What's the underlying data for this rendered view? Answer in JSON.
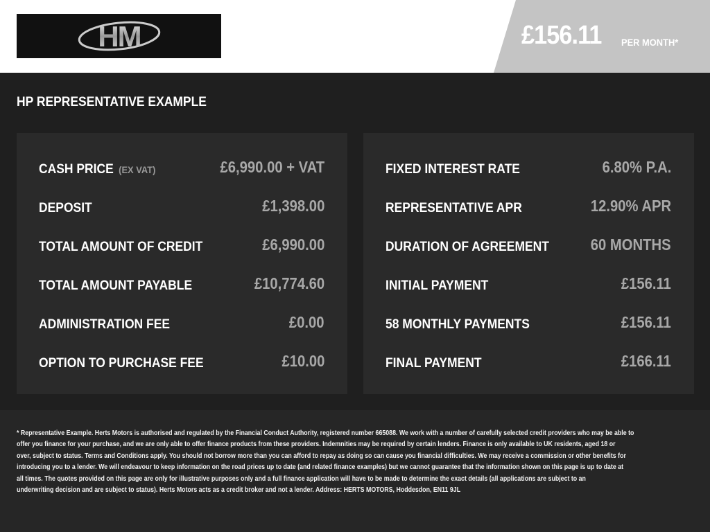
{
  "header": {
    "logo_text": "HM",
    "price": "£156.11",
    "per_month": "PER MONTH*"
  },
  "title": "HP REPRESENTATIVE EXAMPLE",
  "left": [
    {
      "label": "CASH PRICE",
      "sub": "(EX VAT)",
      "value": "£6,990.00 + VAT"
    },
    {
      "label": "DEPOSIT",
      "value": "£1,398.00"
    },
    {
      "label": "TOTAL AMOUNT OF CREDIT",
      "value": "£6,990.00"
    },
    {
      "label": "TOTAL AMOUNT PAYABLE",
      "value": "£10,774.60"
    },
    {
      "label": "ADMINISTRATION FEE",
      "value": "£0.00"
    },
    {
      "label": "OPTION TO PURCHASE FEE",
      "value": "£10.00"
    }
  ],
  "right": [
    {
      "label": "FIXED INTEREST RATE",
      "value": "6.80% P.A."
    },
    {
      "label": "REPRESENTATIVE APR",
      "value": "12.90% APR"
    },
    {
      "label": "DURATION OF AGREEMENT",
      "value": "60 MONTHS"
    },
    {
      "label": "INITIAL PAYMENT",
      "value": "£156.11"
    },
    {
      "label": "58 MONTHLY PAYMENTS",
      "value": "£156.11"
    },
    {
      "label": "FINAL PAYMENT",
      "value": "£166.11"
    }
  ],
  "disclaimer": [
    "* Representative Example. Herts Motors is authorised and regulated by the Financial Conduct Authority, registered number 665088. We work with a number of carefully selected credit providers who may be able to",
    "offer you finance for your purchase, and we are only able to offer finance products from these providers. Indemnities may be required by certain lenders. Finance is only available to UK residents, aged 18 or",
    "over, subject to status. Terms and Conditions apply. You should not borrow more than you can afford to repay as doing so can cause you financial difficulties. We may receive a commission or other benefits for",
    "introducing you to a lender. We will endeavour to keep information on the road prices up to date (and related finance examples) but we cannot guarantee that the information shown on this page is up to date at",
    "all times. The quotes provided on this page are only for illustrative purposes only and a full finance application will have to be made to determine the exact details (all applications are subject to an",
    "underwriting decision and are subject to status). Herts Motors acts as a credit broker and not a lender. Address: HERTS MOTORS, Hoddesdon, EN11 9JL"
  ]
}
